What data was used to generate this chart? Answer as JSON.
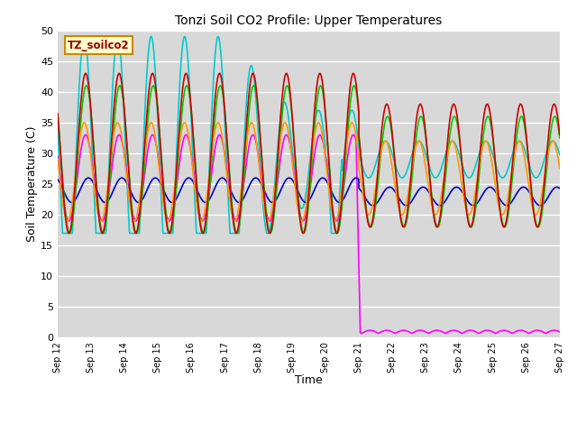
{
  "title": "Tonzi Soil CO2 Profile: Upper Temperatures",
  "xlabel": "Time",
  "ylabel": "Soil Temperature (C)",
  "label_box": "TZ_soilco2",
  "ylim": [
    0,
    50
  ],
  "xlim": [
    0,
    360
  ],
  "plot_bg": "#d8d8d8",
  "fig_bg": "#ffffff",
  "series": {
    "Open -2cm": {
      "color": "#cc0000",
      "lw": 1.2
    },
    "Tree -2cm": {
      "color": "#ff9900",
      "lw": 1.2
    },
    "Open -4cm": {
      "color": "#00cc00",
      "lw": 1.2
    },
    "Tree -4cm": {
      "color": "#0000cc",
      "lw": 1.2
    },
    "Tree2 -2cm": {
      "color": "#00cccc",
      "lw": 1.2
    },
    "Tree2 -4cm": {
      "color": "#ff00ff",
      "lw": 1.2
    }
  },
  "xtick_labels": [
    "Sep 12",
    "Sep 13",
    "Sep 14",
    "Sep 15",
    "Sep 16",
    "Sep 17",
    "Sep 18",
    "Sep 19",
    "Sep 20",
    "Sep 21",
    "Sep 22",
    "Sep 23",
    "Sep 24",
    "Sep 25",
    "Sep 26",
    "Sep 27"
  ],
  "xtick_positions": [
    0,
    24,
    48,
    72,
    96,
    120,
    144,
    168,
    192,
    216,
    240,
    264,
    288,
    312,
    336,
    360
  ],
  "ytick_labels": [
    "0",
    "5",
    "10",
    "15",
    "20",
    "25",
    "30",
    "35",
    "40",
    "45",
    "50"
  ],
  "ytick_positions": [
    0,
    5,
    10,
    15,
    20,
    25,
    30,
    35,
    40,
    45,
    50
  ]
}
